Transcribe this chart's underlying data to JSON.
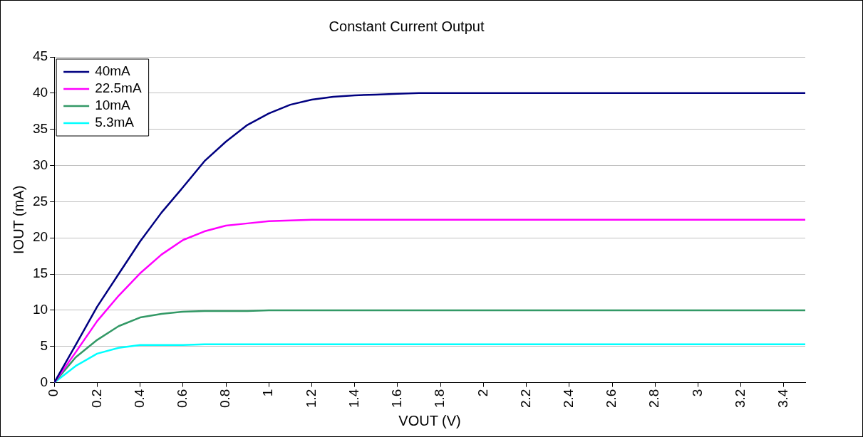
{
  "chart_data": {
    "type": "line",
    "title": "Constant Current Output",
    "xlabel": "VOUT (V)",
    "ylabel": "IOUT (mA)",
    "xlim": [
      0,
      3.5
    ],
    "xticks": [
      0,
      0.2,
      0.4,
      0.6,
      0.8,
      1,
      1.2,
      1.4,
      1.6,
      1.8,
      2,
      2.2,
      2.4,
      2.6,
      2.8,
      3,
      3.2,
      3.4
    ],
    "ylim": [
      0,
      45
    ],
    "yticks": [
      0,
      5,
      10,
      15,
      20,
      25,
      30,
      35,
      40,
      45
    ],
    "grid": "y",
    "legend": "top left",
    "marker": "none",
    "line_style": "solid",
    "series": [
      {
        "name": "40mA",
        "color": "#000080",
        "x": [
          0,
          0.1,
          0.2,
          0.3,
          0.4,
          0.5,
          0.6,
          0.7,
          0.8,
          0.9,
          1,
          1.1,
          1.2,
          1.3,
          1.4,
          1.5,
          1.6,
          1.7,
          3.5
        ],
        "values": [
          0,
          5.2,
          10.5,
          15,
          19.5,
          23.5,
          27,
          30.6,
          33.3,
          35.6,
          37.2,
          38.4,
          39.1,
          39.5,
          39.7,
          39.8,
          39.9,
          40,
          40
        ]
      },
      {
        "name": "22.5mA",
        "color": "#ff00ff",
        "x": [
          0,
          0.1,
          0.2,
          0.3,
          0.4,
          0.5,
          0.6,
          0.7,
          0.8,
          0.9,
          1,
          1.1,
          1.2,
          3.5
        ],
        "values": [
          0,
          4.2,
          8.5,
          12,
          15.1,
          17.7,
          19.7,
          20.9,
          21.7,
          22,
          22.3,
          22.4,
          22.5,
          22.5
        ]
      },
      {
        "name": "10mA",
        "color": "#339966",
        "x": [
          0,
          0.1,
          0.2,
          0.3,
          0.4,
          0.5,
          0.6,
          0.7,
          0.8,
          0.9,
          1,
          3.5
        ],
        "values": [
          0,
          3.5,
          5.9,
          7.8,
          9,
          9.5,
          9.8,
          9.9,
          9.9,
          9.9,
          10,
          10
        ]
      },
      {
        "name": "5.3mA",
        "color": "#00ffff",
        "x": [
          0,
          0.1,
          0.2,
          0.3,
          0.4,
          0.5,
          0.6,
          0.7,
          3.5
        ],
        "values": [
          0,
          2.3,
          4,
          4.8,
          5.2,
          5.2,
          5.2,
          5.3,
          5.3
        ]
      }
    ]
  }
}
